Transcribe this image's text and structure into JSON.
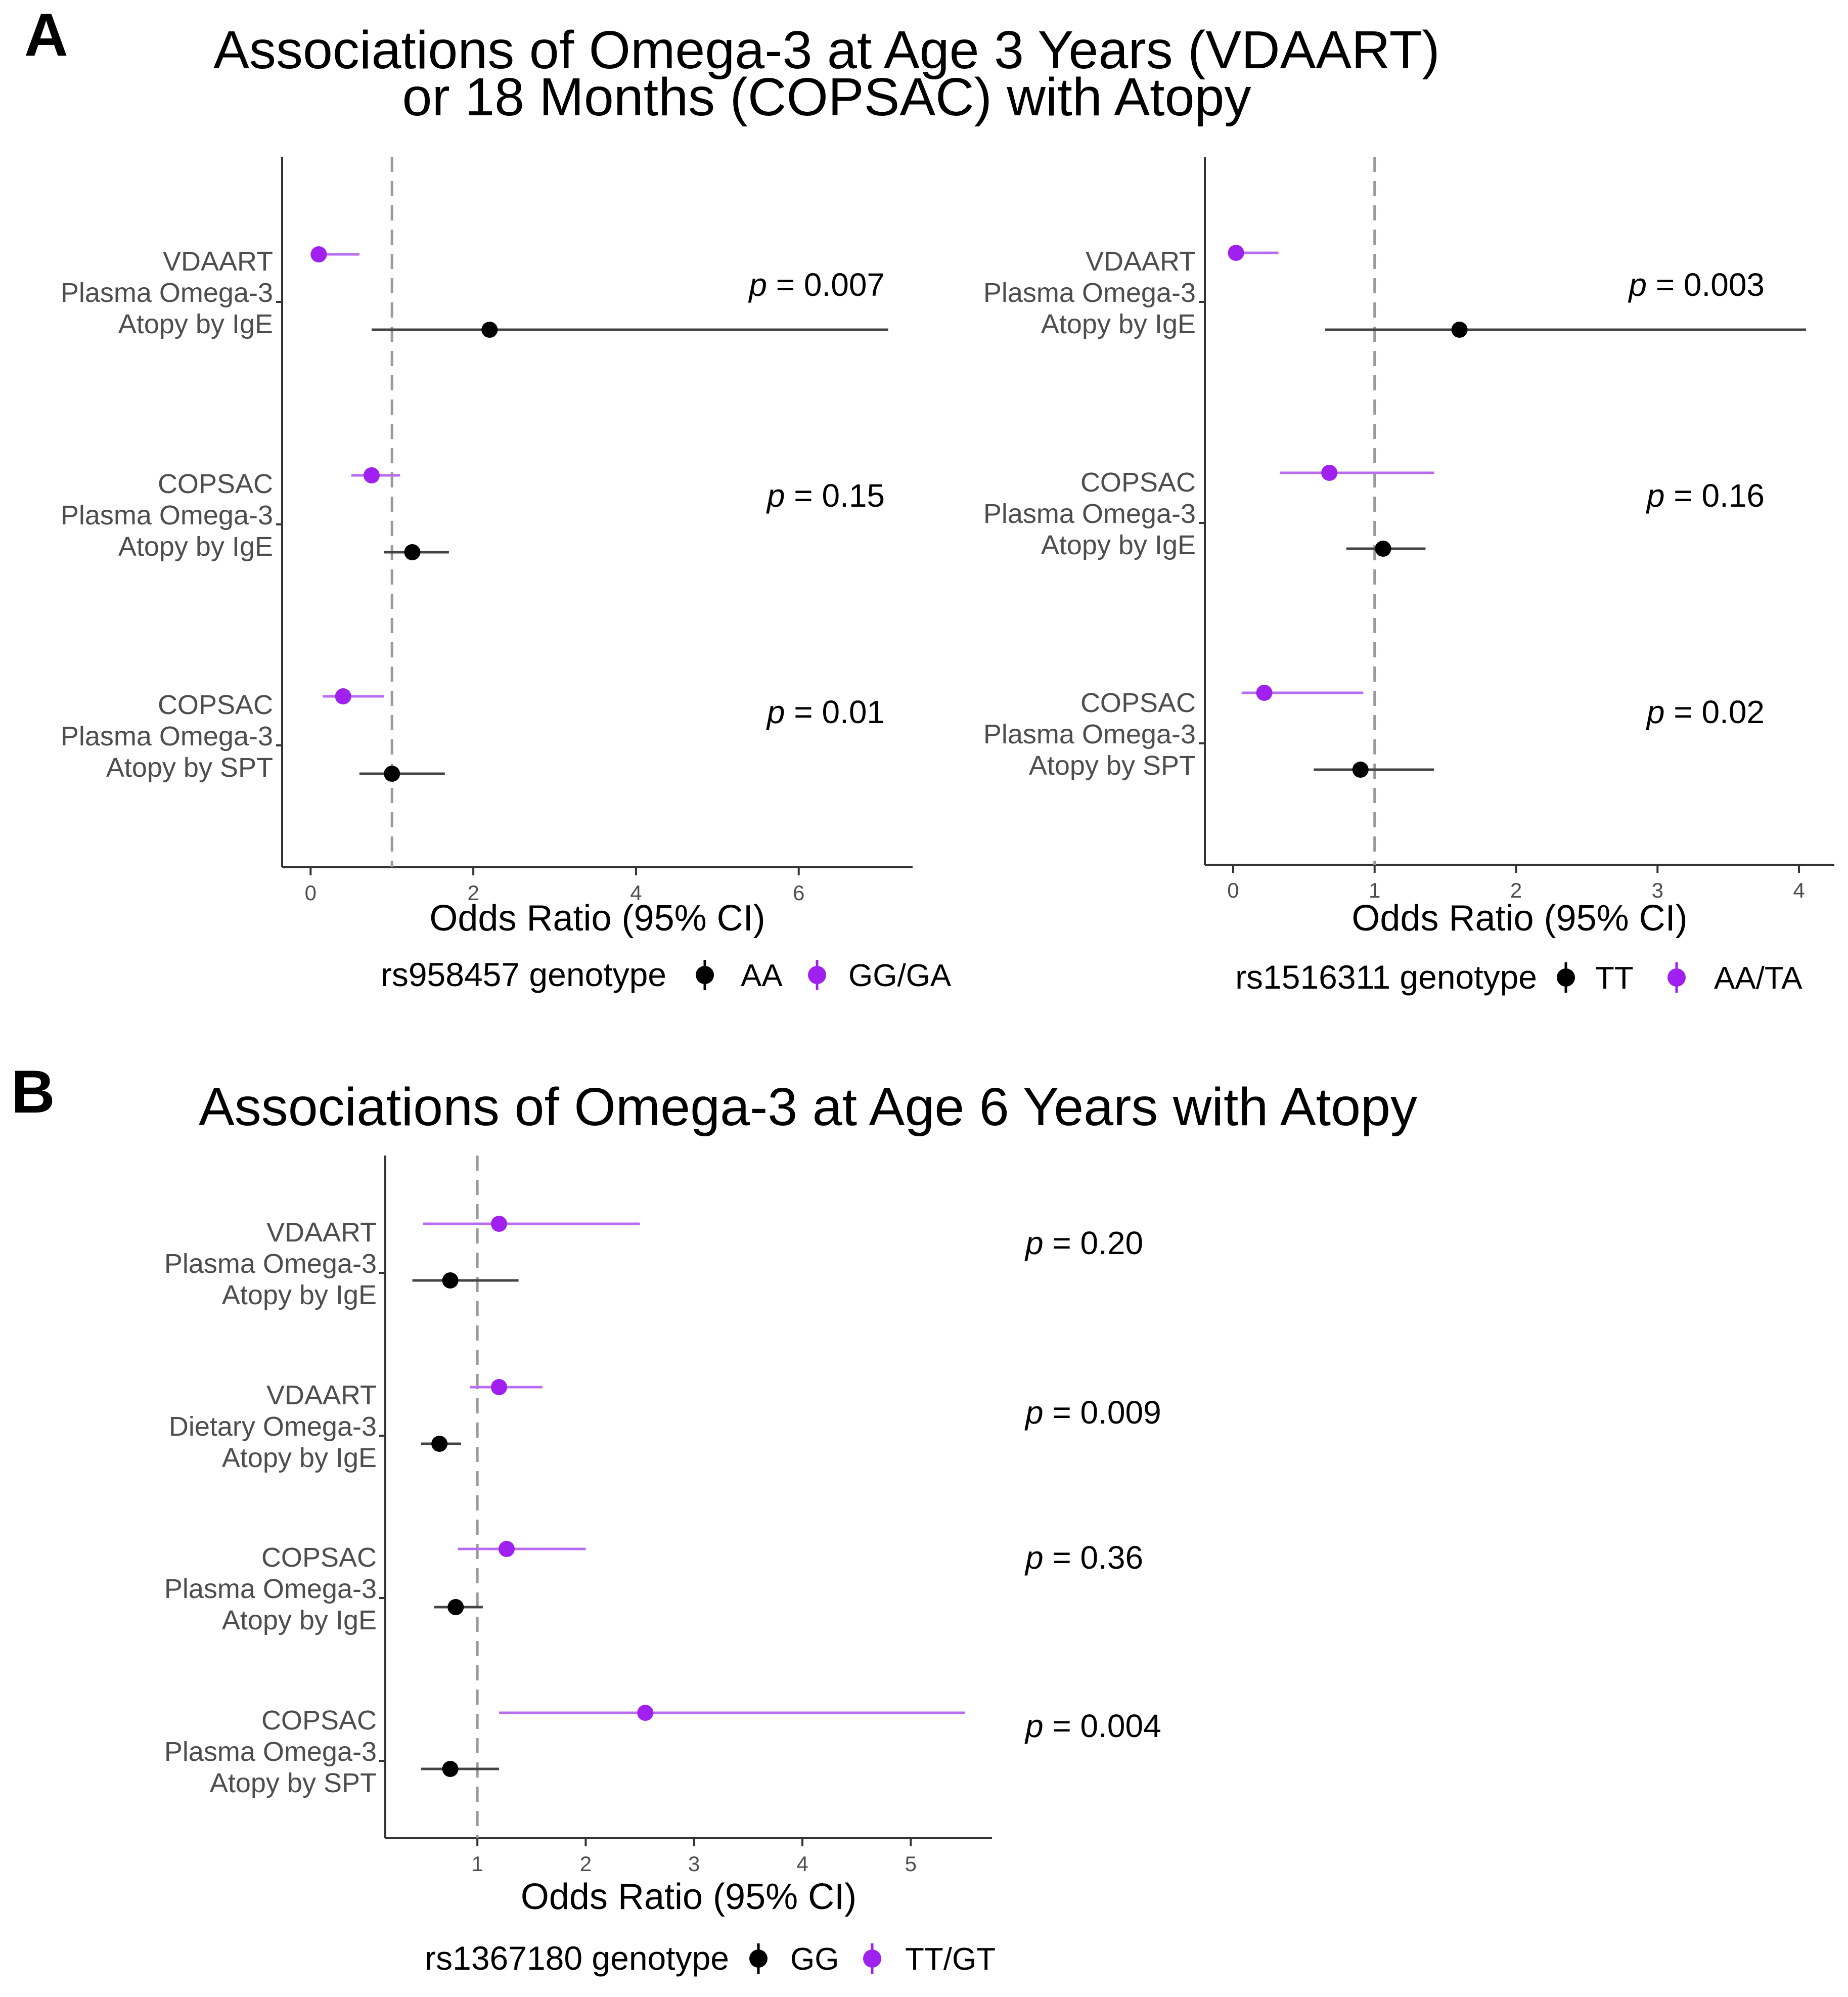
{
  "panel_labels": [
    "A",
    "B"
  ],
  "titles": {
    "A_line1": "Associations of Omega-3 at Age 3 Years (VDAART)",
    "A_line2": "or 18 Months (COPSAC) with Atopy",
    "B": "Associations of Omega-3 at Age 6 Years with Atopy"
  },
  "colors": {
    "major": "#000000",
    "minor": "#a020f0",
    "minor_line": "#b86cf2",
    "axis": "#333333",
    "ref_line": "#999999",
    "label": "#4d4d4d"
  },
  "chart_data": [
    {
      "id": "A-left",
      "type": "forest",
      "xlabel": "Odds Ratio (95% CI)",
      "xlim": [
        -0.35,
        7.4
      ],
      "xticks": [
        0,
        2,
        4,
        6
      ],
      "ref_line": 1,
      "legend": {
        "title": "rs958457 genotype",
        "entries": [
          {
            "label": "AA",
            "color_key": "major"
          },
          {
            "label": "GG/GA",
            "color_key": "minor"
          }
        ]
      },
      "groups": [
        {
          "label": [
            "VDAART",
            "Plasma Omega-3",
            "Atopy by IgE"
          ],
          "p_label": "p",
          "p_value": " = 0.007",
          "minor": {
            "or": 0.1,
            "lo": 0.0,
            "hi": 0.6
          },
          "major": {
            "or": 2.2,
            "lo": 0.75,
            "hi": 7.1
          }
        },
        {
          "label": [
            "COPSAC",
            "Plasma Omega-3",
            "Atopy by IgE"
          ],
          "p_label": "p",
          "p_value": " = 0.15",
          "minor": {
            "or": 0.75,
            "lo": 0.5,
            "hi": 1.1
          },
          "major": {
            "or": 1.25,
            "lo": 0.9,
            "hi": 1.7
          }
        },
        {
          "label": [
            "COPSAC",
            "Plasma Omega-3",
            "Atopy by SPT"
          ],
          "p_label": "p",
          "p_value": " = 0.01",
          "minor": {
            "or": 0.4,
            "lo": 0.15,
            "hi": 0.9
          },
          "major": {
            "or": 1.0,
            "lo": 0.6,
            "hi": 1.65
          }
        }
      ]
    },
    {
      "id": "A-right",
      "type": "forest",
      "xlabel": "Odds Ratio (95% CI)",
      "xlim": [
        -0.2,
        4.25
      ],
      "xticks": [
        0,
        1,
        2,
        3,
        4
      ],
      "ref_line": 1,
      "legend": {
        "title": "rs1516311 genotype",
        "entries": [
          {
            "label": "TT",
            "color_key": "major"
          },
          {
            "label": "AA/TA",
            "color_key": "minor"
          }
        ]
      },
      "groups": [
        {
          "label": [
            "VDAART",
            "Plasma Omega-3",
            "Atopy by IgE"
          ],
          "p_label": "p",
          "p_value": " = 0.003",
          "minor": {
            "or": 0.02,
            "lo": 0.0,
            "hi": 0.32
          },
          "major": {
            "or": 1.6,
            "lo": 0.65,
            "hi": 4.05
          }
        },
        {
          "label": [
            "COPSAC",
            "Plasma Omega-3",
            "Atopy by IgE"
          ],
          "p_label": "p",
          "p_value": " = 0.16",
          "minor": {
            "or": 0.68,
            "lo": 0.33,
            "hi": 1.42
          },
          "major": {
            "or": 1.06,
            "lo": 0.8,
            "hi": 1.36
          }
        },
        {
          "label": [
            "COPSAC",
            "Plasma Omega-3",
            "Atopy by SPT"
          ],
          "p_label": "p",
          "p_value": " = 0.02",
          "minor": {
            "or": 0.22,
            "lo": 0.06,
            "hi": 0.92
          },
          "major": {
            "or": 0.9,
            "lo": 0.57,
            "hi": 1.42
          }
        }
      ]
    },
    {
      "id": "B",
      "type": "forest",
      "xlabel": "Odds Ratio (95% CI)",
      "xlim": [
        0.15,
        5.75
      ],
      "xticks": [
        1,
        2,
        3,
        4,
        5
      ],
      "ref_line": 1,
      "legend": {
        "title": "rs1367180 genotype",
        "entries": [
          {
            "label": "GG",
            "color_key": "major"
          },
          {
            "label": "TT/GT",
            "color_key": "minor"
          }
        ]
      },
      "groups": [
        {
          "label": [
            "VDAART",
            "Plasma Omega-3",
            "Atopy by IgE"
          ],
          "p_label": "p",
          "p_value": " = 0.20",
          "minor": {
            "or": 1.2,
            "lo": 0.5,
            "hi": 2.5
          },
          "major": {
            "or": 0.75,
            "lo": 0.4,
            "hi": 1.38
          }
        },
        {
          "label": [
            "VDAART",
            "Dietary Omega-3",
            "Atopy by IgE"
          ],
          "p_label": "p",
          "p_value": " = 0.009",
          "minor": {
            "or": 1.2,
            "lo": 0.93,
            "hi": 1.6
          },
          "major": {
            "or": 0.65,
            "lo": 0.48,
            "hi": 0.85
          }
        },
        {
          "label": [
            "COPSAC",
            "Plasma Omega-3",
            "Atopy by IgE"
          ],
          "p_label": "p",
          "p_value": " = 0.36",
          "minor": {
            "or": 1.27,
            "lo": 0.82,
            "hi": 2.0
          },
          "major": {
            "or": 0.8,
            "lo": 0.6,
            "hi": 1.05
          }
        },
        {
          "label": [
            "COPSAC",
            "Plasma Omega-3",
            "Atopy by SPT"
          ],
          "p_label": "p",
          "p_value": " = 0.004",
          "minor": {
            "or": 2.55,
            "lo": 1.2,
            "hi": 5.5
          },
          "major": {
            "or": 0.75,
            "lo": 0.48,
            "hi": 1.2
          }
        }
      ]
    }
  ]
}
